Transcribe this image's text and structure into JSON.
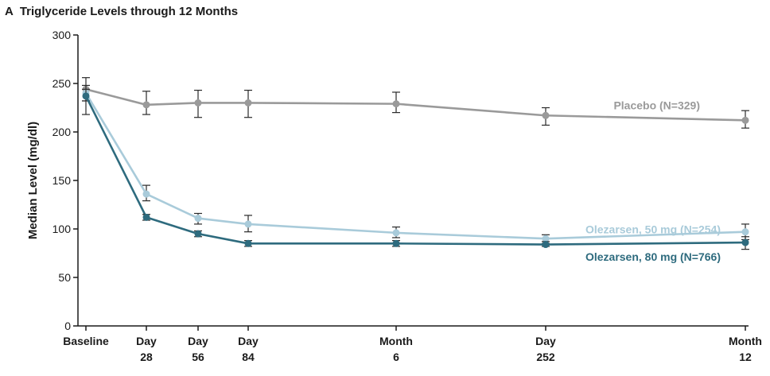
{
  "panel": {
    "letter": "A",
    "title": "Triglyceride Levels through 12 Months"
  },
  "chart_data": {
    "type": "line",
    "title": "Triglyceride Levels through 12 Months",
    "ylabel": "Median Level (mg/dl)",
    "xlabel": "",
    "ylim": [
      0,
      300
    ],
    "yticks": [
      0,
      50,
      100,
      150,
      200,
      250,
      300
    ],
    "x_days": [
      0,
      28,
      56,
      84,
      180,
      252,
      365
    ],
    "x_tick_labels": [
      [
        "Baseline"
      ],
      [
        "Day",
        "28"
      ],
      [
        "Day",
        "56"
      ],
      [
        "Day",
        "84"
      ],
      [
        "Month",
        "6"
      ],
      [
        "Day",
        "252"
      ],
      [
        "Month",
        "12"
      ]
    ],
    "series": [
      {
        "name": "Placebo (N=329)",
        "color": "#9a9a9a",
        "marker": "circle",
        "values": [
          244,
          228,
          230,
          230,
          229,
          217,
          212
        ],
        "err_low": [
          232,
          218,
          215,
          215,
          220,
          207,
          204
        ],
        "err_high": [
          256,
          242,
          243,
          243,
          241,
          225,
          222
        ]
      },
      {
        "name": "Olezarsen, 50 mg (N=254)",
        "color": "#a9cbda",
        "marker": "circle",
        "values": [
          240,
          136,
          111,
          105,
          96,
          90,
          97
        ],
        "err_low": [
          232,
          129,
          105,
          97,
          91,
          85,
          89
        ],
        "err_high": [
          248,
          145,
          116,
          114,
          102,
          94,
          105
        ]
      },
      {
        "name": "Olezarsen, 80 mg (N=766)",
        "color": "#2e6b7e",
        "marker": "circle",
        "values": [
          237,
          112,
          95,
          85,
          85,
          84,
          86
        ],
        "err_low": [
          218,
          109,
          92,
          82,
          82,
          82,
          79
        ],
        "err_high": [
          244,
          115,
          98,
          88,
          88,
          87,
          92
        ]
      }
    ]
  }
}
